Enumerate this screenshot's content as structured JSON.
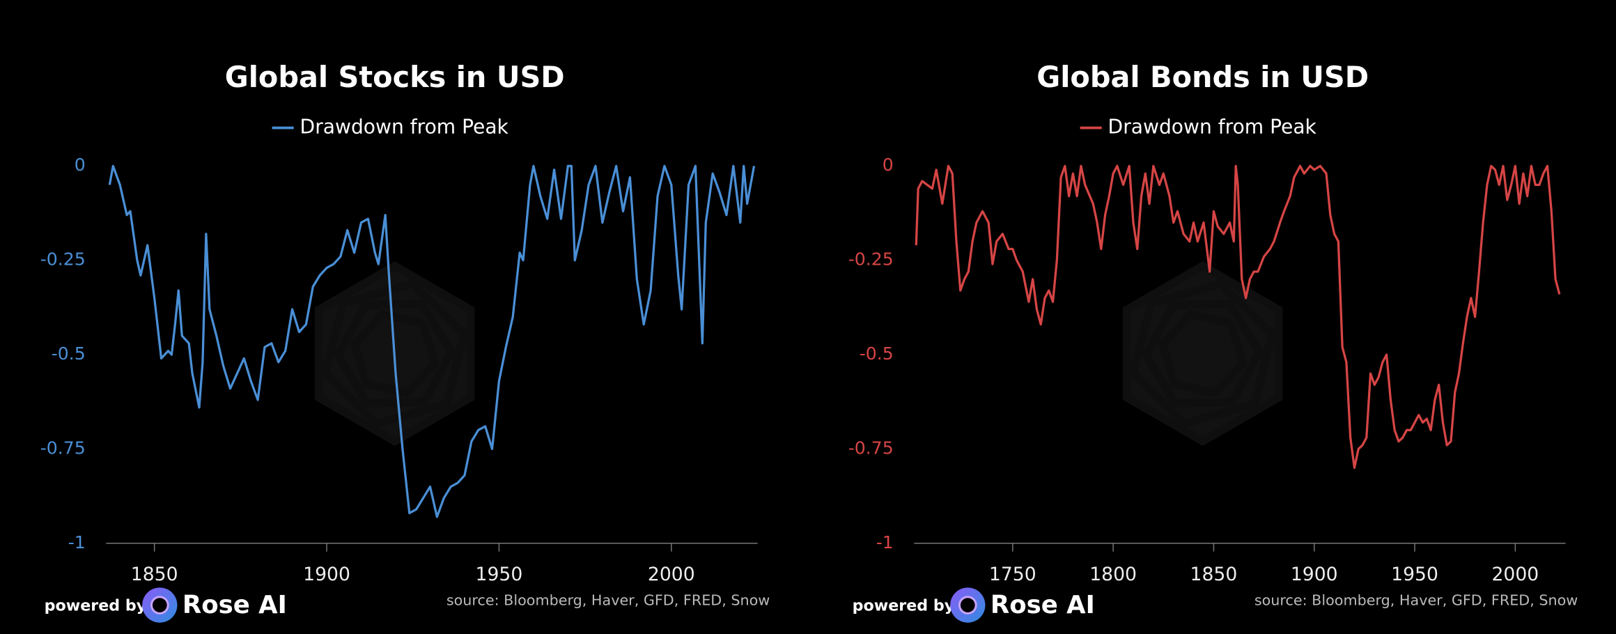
{
  "chart_data": [
    {
      "type": "line",
      "title": "Global Stocks in USD",
      "legend": "top",
      "grid": false,
      "powered_by": "powered by",
      "brand": "Rose AI",
      "source": "source: Bloomberg, Haver, GFD, FRED, Snow",
      "xlim": [
        1836,
        2025
      ],
      "xticks": [
        1850,
        1900,
        1950,
        2000
      ],
      "ylim": [
        -1,
        0
      ],
      "yticks": [
        0,
        -0.25,
        -0.5,
        -0.75,
        -1
      ],
      "x": [
        1837,
        1838,
        1840,
        1842,
        1843,
        1845,
        1846,
        1848,
        1850,
        1852,
        1854,
        1855,
        1856,
        1857,
        1858,
        1860,
        1861,
        1863,
        1864,
        1865,
        1866,
        1868,
        1870,
        1872,
        1874,
        1876,
        1878,
        1880,
        1882,
        1884,
        1886,
        1888,
        1890,
        1892,
        1894,
        1896,
        1898,
        1900,
        1902,
        1904,
        1906,
        1908,
        1910,
        1912,
        1914,
        1915,
        1917,
        1918,
        1920,
        1922,
        1924,
        1926,
        1928,
        1930,
        1932,
        1934,
        1936,
        1938,
        1940,
        1942,
        1944,
        1946,
        1948,
        1950,
        1952,
        1954,
        1956,
        1957,
        1959,
        1960,
        1962,
        1964,
        1966,
        1968,
        1970,
        1971,
        1972,
        1974,
        1976,
        1978,
        1980,
        1982,
        1984,
        1986,
        1988,
        1990,
        1992,
        1994,
        1996,
        1998,
        2000,
        2002,
        2003,
        2005,
        2007,
        2009,
        2010,
        2012,
        2014,
        2016,
        2018,
        2020,
        2021,
        2022,
        2024
      ],
      "series": [
        {
          "name": "Drawdown from Peak",
          "color": "#4a8fd6",
          "values": [
            -0.05,
            0,
            -0.05,
            -0.13,
            -0.12,
            -0.25,
            -0.29,
            -0.21,
            -0.35,
            -0.51,
            -0.49,
            -0.5,
            -0.42,
            -0.33,
            -0.45,
            -0.47,
            -0.55,
            -0.64,
            -0.52,
            -0.18,
            -0.38,
            -0.45,
            -0.53,
            -0.59,
            -0.55,
            -0.51,
            -0.57,
            -0.62,
            -0.48,
            -0.47,
            -0.52,
            -0.49,
            -0.38,
            -0.44,
            -0.42,
            -0.32,
            -0.29,
            -0.27,
            -0.26,
            -0.24,
            -0.17,
            -0.23,
            -0.15,
            -0.14,
            -0.23,
            -0.26,
            -0.13,
            -0.28,
            -0.55,
            -0.75,
            -0.92,
            -0.91,
            -0.88,
            -0.85,
            -0.93,
            -0.88,
            -0.85,
            -0.84,
            -0.82,
            -0.73,
            -0.7,
            -0.69,
            -0.75,
            -0.57,
            -0.48,
            -0.4,
            -0.23,
            -0.25,
            -0.05,
            0,
            -0.08,
            -0.14,
            -0.01,
            -0.14,
            0,
            0,
            -0.25,
            -0.17,
            -0.05,
            0,
            -0.15,
            -0.07,
            0,
            -0.12,
            -0.03,
            -0.3,
            -0.42,
            -0.33,
            -0.08,
            0,
            -0.05,
            -0.29,
            -0.38,
            -0.05,
            0,
            -0.47,
            -0.15,
            -0.02,
            -0.07,
            -0.13,
            0,
            -0.15,
            0,
            -0.1,
            0
          ]
        }
      ]
    },
    {
      "type": "line",
      "title": "Global Bonds in USD",
      "legend": "top",
      "grid": false,
      "powered_by": "powered by",
      "brand": "Rose AI",
      "source": "source: Bloomberg, Haver, GFD, FRED, Snow",
      "xlim": [
        1701,
        2025
      ],
      "xticks": [
        1750,
        1800,
        1850,
        1900,
        1950,
        2000
      ],
      "ylim": [
        -1,
        0
      ],
      "yticks": [
        0,
        -0.25,
        -0.5,
        -0.75,
        -1
      ],
      "x": [
        1702,
        1703,
        1705,
        1710,
        1712,
        1715,
        1718,
        1720,
        1722,
        1724,
        1726,
        1728,
        1730,
        1732,
        1735,
        1738,
        1740,
        1742,
        1745,
        1748,
        1750,
        1752,
        1755,
        1758,
        1760,
        1762,
        1764,
        1766,
        1768,
        1770,
        1772,
        1774,
        1776,
        1778,
        1780,
        1782,
        1784,
        1786,
        1790,
        1792,
        1794,
        1796,
        1798,
        1800,
        1802,
        1805,
        1808,
        1810,
        1812,
        1814,
        1816,
        1818,
        1820,
        1823,
        1825,
        1828,
        1830,
        1832,
        1835,
        1838,
        1840,
        1842,
        1845,
        1848,
        1850,
        1852,
        1855,
        1858,
        1860,
        1861,
        1862,
        1864,
        1866,
        1868,
        1870,
        1872,
        1875,
        1878,
        1880,
        1883,
        1885,
        1888,
        1890,
        1893,
        1895,
        1898,
        1900,
        1903,
        1906,
        1908,
        1910,
        1912,
        1914,
        1916,
        1918,
        1920,
        1922,
        1924,
        1926,
        1928,
        1930,
        1932,
        1934,
        1936,
        1938,
        1940,
        1942,
        1944,
        1946,
        1948,
        1950,
        1952,
        1954,
        1956,
        1958,
        1960,
        1962,
        1964,
        1966,
        1968,
        1970,
        1972,
        1974,
        1976,
        1978,
        1980,
        1982,
        1984,
        1986,
        1988,
        1990,
        1992,
        1994,
        1996,
        1998,
        2000,
        2002,
        2004,
        2006,
        2008,
        2010,
        2012,
        2014,
        2016,
        2018,
        2020,
        2022
      ],
      "series": [
        {
          "name": "Drawdown from Peak",
          "color": "#d64545",
          "values": [
            -0.21,
            -0.06,
            -0.04,
            -0.06,
            -0.01,
            -0.1,
            0,
            -0.02,
            -0.2,
            -0.33,
            -0.3,
            -0.28,
            -0.2,
            -0.15,
            -0.12,
            -0.15,
            -0.26,
            -0.2,
            -0.18,
            -0.22,
            -0.22,
            -0.25,
            -0.28,
            -0.36,
            -0.3,
            -0.38,
            -0.42,
            -0.35,
            -0.33,
            -0.36,
            -0.25,
            -0.03,
            0,
            -0.08,
            -0.02,
            -0.08,
            0,
            -0.05,
            -0.1,
            -0.15,
            -0.22,
            -0.13,
            -0.08,
            -0.02,
            0,
            -0.05,
            0,
            -0.15,
            -0.22,
            -0.08,
            -0.02,
            -0.1,
            0,
            -0.05,
            -0.02,
            -0.08,
            -0.15,
            -0.12,
            -0.18,
            -0.2,
            -0.15,
            -0.2,
            -0.15,
            -0.28,
            -0.12,
            -0.16,
            -0.18,
            -0.15,
            -0.2,
            0,
            -0.05,
            -0.3,
            -0.35,
            -0.3,
            -0.28,
            -0.28,
            -0.24,
            -0.22,
            -0.2,
            -0.15,
            -0.12,
            -0.08,
            -0.03,
            0,
            -0.02,
            0,
            -0.01,
            0,
            -0.02,
            -0.13,
            -0.18,
            -0.2,
            -0.48,
            -0.52,
            -0.72,
            -0.8,
            -0.75,
            -0.74,
            -0.72,
            -0.55,
            -0.58,
            -0.56,
            -0.52,
            -0.5,
            -0.62,
            -0.7,
            -0.73,
            -0.72,
            -0.7,
            -0.7,
            -0.68,
            -0.66,
            -0.68,
            -0.67,
            -0.7,
            -0.62,
            -0.58,
            -0.68,
            -0.74,
            -0.73,
            -0.6,
            -0.55,
            -0.47,
            -0.4,
            -0.35,
            -0.4,
            -0.28,
            -0.15,
            -0.05,
            0,
            -0.01,
            -0.05,
            0,
            -0.09,
            -0.05,
            0,
            -0.1,
            -0.02,
            -0.08,
            0,
            -0.05,
            -0.05,
            -0.02,
            0,
            -0.12,
            -0.3,
            -0.34
          ]
        }
      ]
    }
  ]
}
